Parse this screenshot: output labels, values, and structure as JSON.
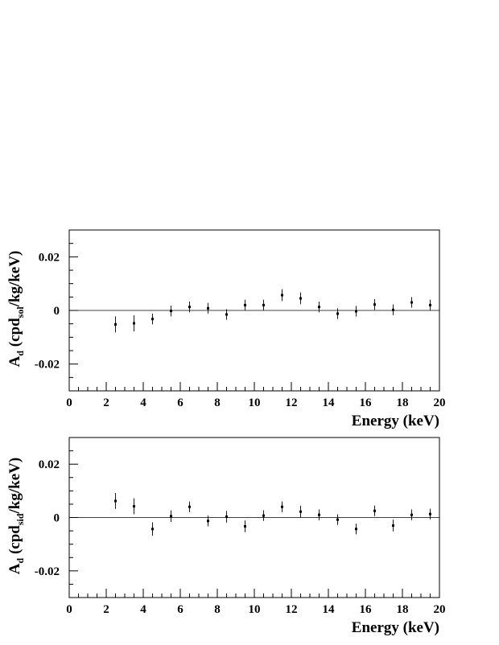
{
  "chart_data": [
    {
      "type": "scatter",
      "xlabel": "Energy (keV)",
      "ylabel": {
        "main": "A",
        "main_sub": "d",
        "open": " (cpd",
        "sub": "sol",
        "close": "/kg/keV)"
      },
      "xlim": [
        0,
        20
      ],
      "ylim": [
        -0.03,
        0.03
      ],
      "x_ticks": [
        "0",
        "2",
        "4",
        "6",
        "8",
        "10",
        "12",
        "14",
        "16",
        "18",
        "20"
      ],
      "y_ticks": [
        "-0.02",
        "0",
        "0.02"
      ],
      "reference_line_y": 0,
      "x": [
        2.5,
        3.5,
        4.5,
        5.5,
        6.5,
        7.5,
        8.5,
        9.5,
        10.5,
        11.5,
        12.5,
        13.5,
        14.5,
        15.5,
        16.5,
        17.5,
        18.5,
        19.5
      ],
      "y": [
        -0.0052,
        -0.0048,
        -0.0032,
        -0.0002,
        0.0013,
        0.0008,
        -0.0015,
        0.002,
        0.002,
        0.0057,
        0.0045,
        0.0013,
        -0.0012,
        -0.0003,
        0.0022,
        0.0002,
        0.003,
        0.002
      ],
      "yerr": [
        0.003,
        0.003,
        0.002,
        0.002,
        0.002,
        0.002,
        0.002,
        0.002,
        0.002,
        0.0022,
        0.0022,
        0.002,
        0.002,
        0.002,
        0.002,
        0.002,
        0.002,
        0.002
      ]
    },
    {
      "type": "scatter",
      "xlabel": "Energy (keV)",
      "ylabel": {
        "main": "A",
        "main_sub": "d",
        "open": " (cpd",
        "sub": "sid",
        "close": "/kg/keV)"
      },
      "xlim": [
        0,
        20
      ],
      "ylim": [
        -0.03,
        0.03
      ],
      "x_ticks": [
        "0",
        "2",
        "4",
        "6",
        "8",
        "10",
        "12",
        "14",
        "16",
        "18",
        "20"
      ],
      "y_ticks": [
        "-0.02",
        "0",
        "0.02"
      ],
      "reference_line_y": 0,
      "x": [
        2.5,
        3.5,
        4.5,
        5.5,
        6.5,
        7.5,
        8.5,
        9.5,
        10.5,
        11.5,
        12.5,
        13.5,
        14.5,
        15.5,
        16.5,
        17.5,
        18.5,
        19.5
      ],
      "y": [
        0.0062,
        0.0042,
        -0.0043,
        0.0005,
        0.004,
        -0.0013,
        0.0003,
        -0.0033,
        0.0007,
        0.004,
        0.0022,
        0.001,
        -0.0008,
        -0.0043,
        0.0025,
        -0.003,
        0.001,
        0.0013
      ],
      "yerr": [
        0.003,
        0.003,
        0.0025,
        0.0022,
        0.002,
        0.002,
        0.0022,
        0.0022,
        0.002,
        0.002,
        0.0022,
        0.002,
        0.002,
        0.002,
        0.002,
        0.0022,
        0.002,
        0.002
      ]
    }
  ]
}
